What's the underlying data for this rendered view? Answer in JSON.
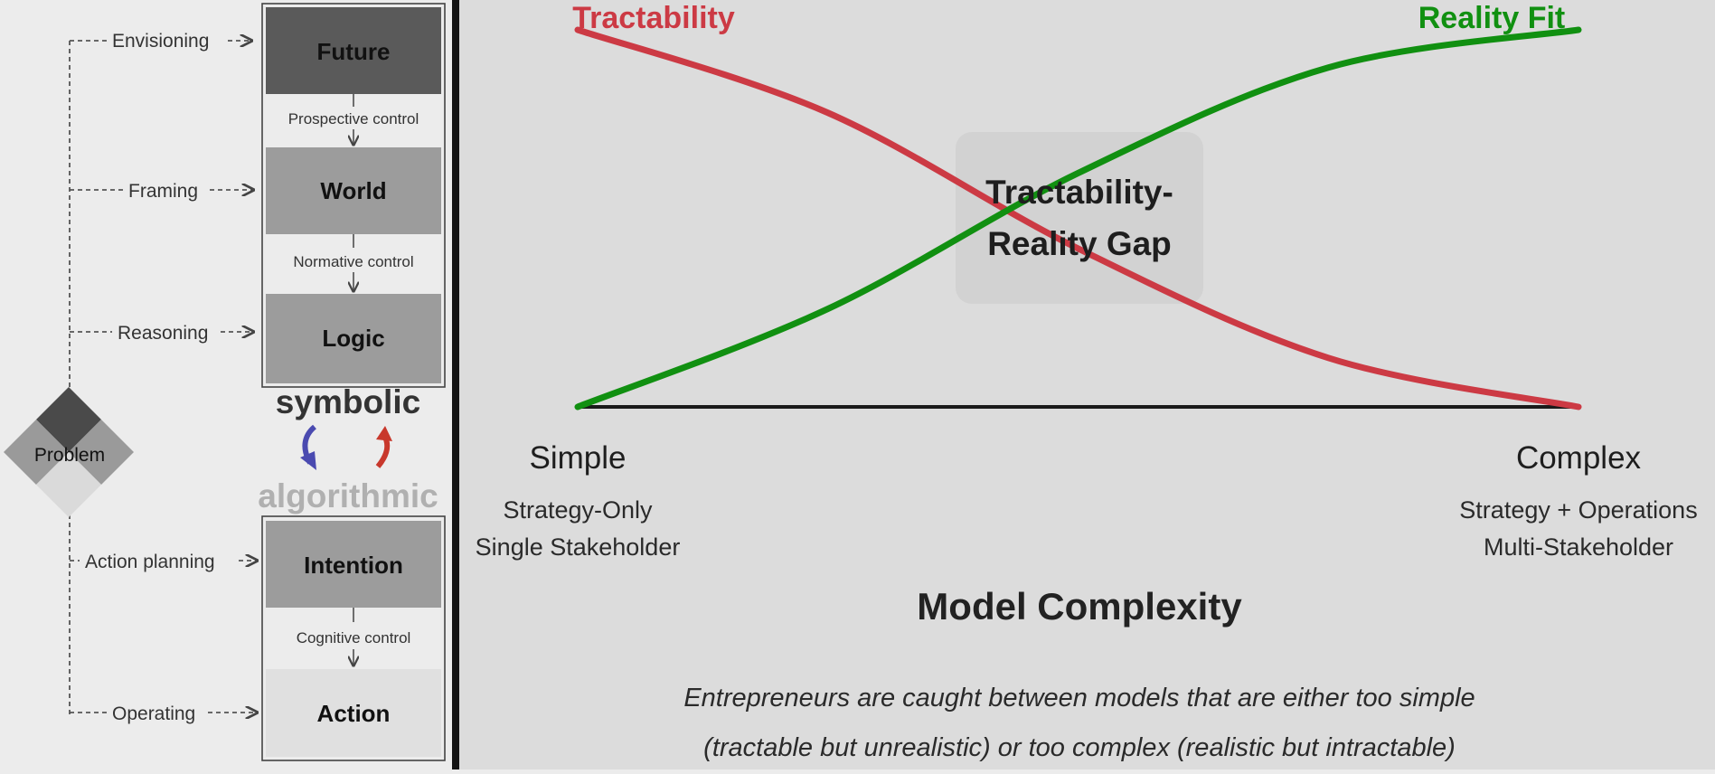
{
  "left_diagram": {
    "problem_label": "Problem",
    "upper_labels": [
      "Envisioning",
      "Framing",
      "Reasoning"
    ],
    "upper_boxes": [
      "Future",
      "World",
      "Logic"
    ],
    "upper_controls": [
      "Prospective control",
      "Normative control"
    ],
    "symbolic_label": "symbolic",
    "algorithmic_label": "algorithmic",
    "lower_labels": [
      "Action planning",
      "Operating"
    ],
    "lower_boxes": [
      "Intention",
      "Action"
    ],
    "lower_controls": [
      "Cognitive control"
    ],
    "colors": {
      "future": "#5a5a5a",
      "mid": "#9c9c9c",
      "action": "#e0e0e0",
      "arrow_down": "#4a4ab0",
      "arrow_up": "#c8382c"
    }
  },
  "chart": {
    "series": [
      {
        "name": "Tractability",
        "color": "#cc3a44"
      },
      {
        "name": "Reality Fit",
        "color": "#119011"
      }
    ],
    "gap_label_lines": [
      "Tractability-",
      "Reality Gap"
    ],
    "x_axis": {
      "title": "Model Complexity",
      "start_label": "Simple",
      "start_sublabels": [
        "Strategy-Only",
        "Single Stakeholder"
      ],
      "end_label": "Complex",
      "end_sublabels": [
        "Strategy + Operations",
        "Multi-Stakeholder"
      ]
    },
    "caption_lines": [
      "Entrepreneurs are caught between models that are either too simple",
      "(tractable but unrealistic) or too complex (realistic but intractable)"
    ]
  },
  "chart_data": {
    "type": "line",
    "x": [
      0,
      0.25,
      0.5,
      0.75,
      1
    ],
    "series": [
      {
        "name": "Tractability",
        "values": [
          1.0,
          0.78,
          0.42,
          0.13,
          0.0
        ]
      },
      {
        "name": "Reality Fit",
        "values": [
          0.0,
          0.26,
          0.62,
          0.9,
          1.0
        ]
      }
    ],
    "xlabel": "Model Complexity",
    "ylim": [
      0,
      1
    ],
    "grid": false
  }
}
